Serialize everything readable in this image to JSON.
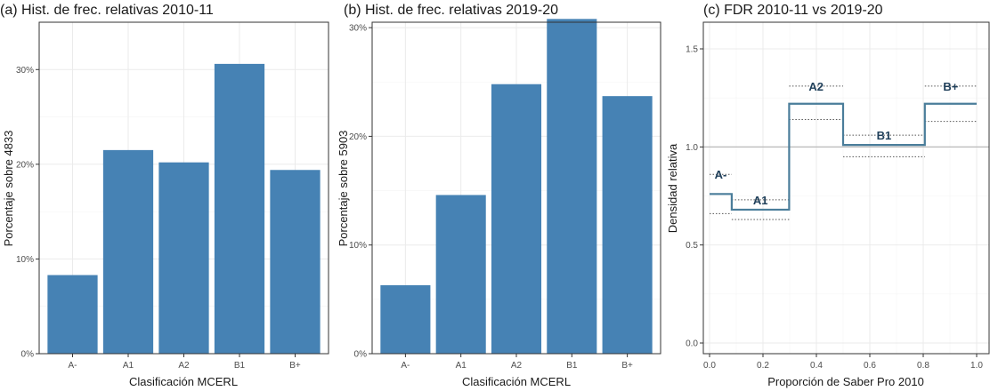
{
  "colors": {
    "bar": "#4682b4",
    "step": "#4a7d9a",
    "reference": "#b3b3b3",
    "bounds": "#555555",
    "grid": "#ebebeb"
  },
  "chart_data": [
    {
      "type": "bar",
      "title": "(a) Hist. de frec. relativas 2010-11",
      "xlabel": "Clasificación MCERL",
      "ylabel": "Porcentaje sobre  4833",
      "categories": [
        "A-",
        "A1",
        "A2",
        "B1",
        "B+"
      ],
      "values": [
        8.3,
        21.5,
        20.2,
        30.6,
        19.4
      ],
      "ylim": [
        0,
        35
      ],
      "yticks": [
        0,
        10,
        20,
        30
      ],
      "ytick_labels": [
        "0%",
        "10%",
        "20%",
        "30%"
      ],
      "grid": true
    },
    {
      "type": "bar",
      "title": "(b) Hist. de frec. relativas 2019-20",
      "xlabel": "Clasificación MCERL",
      "ylabel": "Porcentaje sobre  5903",
      "categories": [
        "A-",
        "A1",
        "A2",
        "B1",
        "B+"
      ],
      "values": [
        6.3,
        14.6,
        24.8,
        30.8,
        23.7
      ],
      "ylim": [
        0,
        30.5
      ],
      "yticks": [
        0,
        10,
        20,
        30
      ],
      "ytick_labels": [
        "0%",
        "10%",
        "20%",
        "30%"
      ],
      "grid": true
    },
    {
      "type": "line",
      "title": "(c) FDR 2010-11 vs 2019-20",
      "xlabel": "Proporción de Saber Pro 2010",
      "ylabel": "Densidad relativa",
      "xlim": [
        0,
        1
      ],
      "ylim": [
        0,
        1.5
      ],
      "xticks": [
        0,
        0.2,
        0.4,
        0.6,
        0.8,
        1
      ],
      "xtick_labels": [
        "0.0",
        "0.2",
        "0.4",
        "0.6",
        "0.8",
        "1.0"
      ],
      "yticks": [
        0,
        0.5,
        1,
        1.5
      ],
      "ytick_labels": [
        "0.0",
        "0.5",
        "1.0",
        "1.5"
      ],
      "reference_line": 1.0,
      "grid": true,
      "segments": [
        {
          "label": "A-",
          "x0": 0.0,
          "x1": 0.083,
          "y": 0.76,
          "lower": 0.66,
          "upper": 0.86
        },
        {
          "label": "A1",
          "x0": 0.083,
          "x1": 0.298,
          "y": 0.68,
          "lower": 0.63,
          "upper": 0.73
        },
        {
          "label": "A2",
          "x0": 0.298,
          "x1": 0.5,
          "y": 1.22,
          "lower": 1.14,
          "upper": 1.31
        },
        {
          "label": "B1",
          "x0": 0.5,
          "x1": 0.806,
          "y": 1.01,
          "lower": 0.95,
          "upper": 1.06
        },
        {
          "label": "B+",
          "x0": 0.806,
          "x1": 1.0,
          "y": 1.22,
          "lower": 1.13,
          "upper": 1.31
        }
      ]
    }
  ]
}
